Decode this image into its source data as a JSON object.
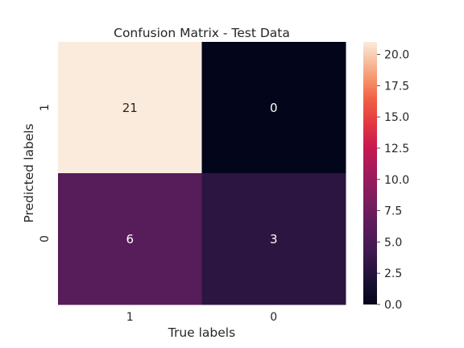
{
  "chart_data": {
    "type": "heatmap",
    "title": "Confusion Matrix - Test Data",
    "xlabel": "True labels",
    "ylabel": "Predicted labels",
    "x_categories": [
      "1",
      "0"
    ],
    "y_categories": [
      "1",
      "0"
    ],
    "values": [
      [
        21,
        0
      ],
      [
        6,
        3
      ]
    ],
    "annotations": [
      [
        "21",
        "0"
      ],
      [
        "6",
        "3"
      ]
    ],
    "colormap": "rocket",
    "color_range": [
      0,
      21
    ],
    "colorbar_ticks": [
      "0.0",
      "2.5",
      "5.0",
      "7.5",
      "10.0",
      "12.5",
      "15.0",
      "17.5",
      "20.0"
    ],
    "colorbar_tick_values": [
      0,
      2.5,
      5,
      7.5,
      10,
      12.5,
      15,
      17.5,
      20
    ],
    "grid": false
  }
}
